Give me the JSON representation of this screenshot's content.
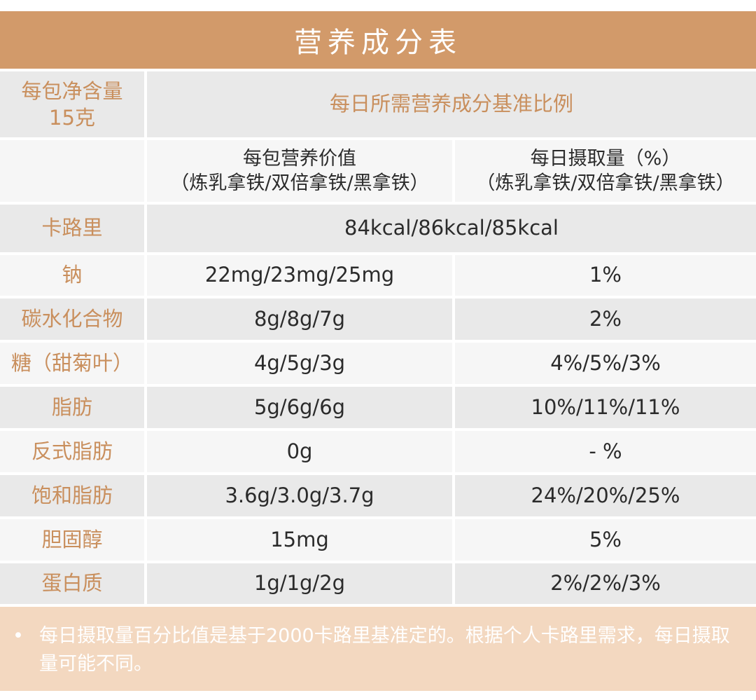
{
  "title": "营养成分表",
  "net_content": {
    "line1": "每包净含量",
    "line2": "15克"
  },
  "daily_reference_label": "每日所需营养成分基准比例",
  "col_headers": {
    "per_pack": {
      "line1": "每包营养价值",
      "line2": "（炼乳拿铁/双倍拿铁/黑拿铁）"
    },
    "daily": {
      "line1": "每日摄取量（%）",
      "line2": "（炼乳拿铁/双倍拿铁/黑拿铁）"
    }
  },
  "calories": {
    "label": "卡路里",
    "value": "84kcal/86kcal/85kcal"
  },
  "rows": [
    {
      "label": "钠",
      "per_pack": "22mg/23mg/25mg",
      "daily": "1%"
    },
    {
      "label": "碳水化合物",
      "per_pack": "8g/8g/7g",
      "daily": "2%"
    },
    {
      "label": "糖（甜菊叶）",
      "per_pack": "4g/5g/3g",
      "daily": "4%/5%/3%"
    },
    {
      "label": "脂肪",
      "per_pack": "5g/6g/6g",
      "daily": "10%/11%/11%"
    },
    {
      "label": "反式脂肪",
      "per_pack": "0g",
      "daily": "- %"
    },
    {
      "label": "饱和脂肪",
      "per_pack": "3.6g/3.0g/3.7g",
      "daily": "24%/20%/25%"
    },
    {
      "label": "胆固醇",
      "per_pack": "15mg",
      "daily": "5%"
    },
    {
      "label": "蛋白质",
      "per_pack": "1g/1g/2g",
      "daily": "2%/2%/3%"
    }
  ],
  "footnote": {
    "bullet": "•",
    "text": "每日摄取量百分比值是基于2000卡路里基准定的。根据个人卡路里需求，每日摄取量可能不同。"
  },
  "colors": {
    "accent": "#d29a6a",
    "label_text": "#c98f5d",
    "grey_bg": "#e9e9e9",
    "footer_bg": "#f3d8c0"
  }
}
